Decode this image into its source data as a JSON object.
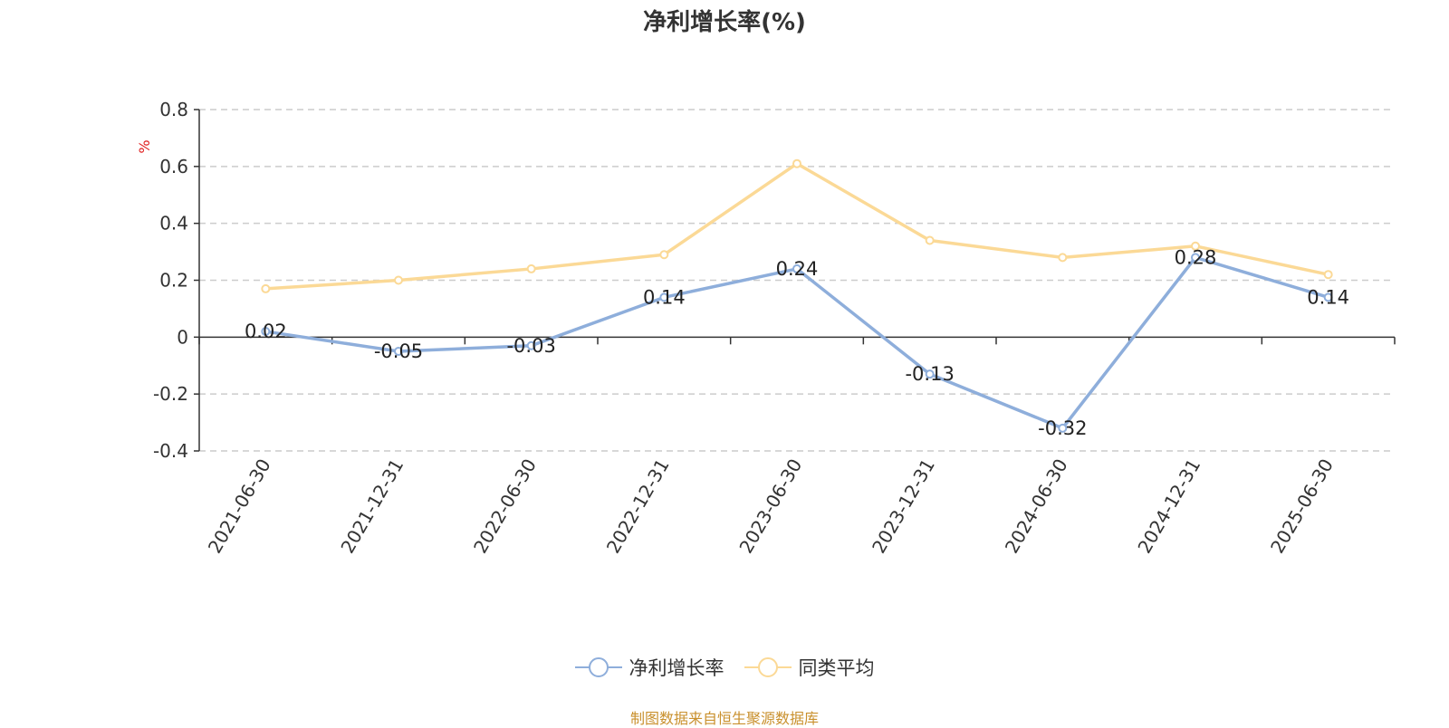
{
  "chart_data": {
    "type": "line",
    "title": "净利增长率(%)",
    "ylabel": "%",
    "xlabel": "",
    "categories": [
      "2021-06-30",
      "2021-12-31",
      "2022-06-30",
      "2022-12-31",
      "2023-06-30",
      "2023-12-31",
      "2024-06-30",
      "2024-12-31",
      "2025-06-30"
    ],
    "ylim": [
      -0.4,
      0.8
    ],
    "yticks": [
      "0.8",
      "0.6",
      "0.4",
      "0.2",
      "0",
      "-0.2",
      "-0.4"
    ],
    "ytick_values": [
      0.8,
      0.6,
      0.4,
      0.2,
      0,
      -0.2,
      -0.4
    ],
    "grid": true,
    "legend_position": "bottom-center",
    "series": [
      {
        "name": "净利增长率",
        "color": "#8eaedb",
        "values": [
          0.02,
          -0.05,
          -0.03,
          0.14,
          0.24,
          -0.13,
          -0.32,
          0.28,
          0.14
        ],
        "data_labels": [
          "0.02",
          "-0.05",
          "-0.03",
          "0.14",
          "0.24",
          "-0.13",
          "-0.32",
          "0.28",
          "0.14"
        ]
      },
      {
        "name": "同类平均",
        "color": "#fbd996",
        "values": [
          0.17,
          0.2,
          0.24,
          0.29,
          0.61,
          0.34,
          0.28,
          0.32,
          0.22
        ]
      }
    ]
  },
  "source_note": "制图数据来自恒生聚源数据库"
}
